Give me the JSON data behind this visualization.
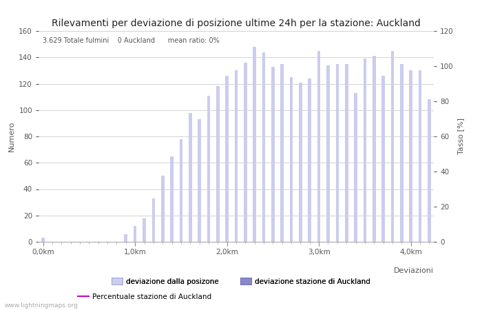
{
  "title": "Rilevamenti per deviazione di posizione ultime 24h per la stazione: Auckland",
  "subtitle": "3.629 Totale fulmini    0 Auckland      mean ratio: 0%",
  "xlabel": "Deviazioni",
  "ylabel_left": "Numero",
  "ylabel_right": "Tasso [%]",
  "watermark": "www.lightningmaps.org",
  "bar_values": [
    3,
    0,
    0,
    0,
    0,
    0,
    0,
    0,
    0,
    6,
    12,
    18,
    33,
    50,
    65,
    78,
    98,
    93,
    111,
    118,
    126,
    130,
    136,
    148,
    144,
    133,
    135,
    125,
    121,
    124,
    145,
    134,
    135,
    135,
    113,
    139,
    141,
    126,
    145,
    135,
    130,
    130,
    108
  ],
  "bar_color_light": "#ccccee",
  "bar_color_dark": "#8888cc",
  "line_color": "#cc00cc",
  "x_tick_labels": [
    "0,0km",
    "1,0km",
    "2,0km",
    "3,0km",
    "4,0km"
  ],
  "x_tick_positions": [
    0,
    10,
    20,
    30,
    40
  ],
  "ylim_left": [
    0,
    160
  ],
  "ylim_right": [
    0,
    120
  ],
  "yticks_left": [
    0,
    20,
    40,
    60,
    80,
    100,
    120,
    140,
    160
  ],
  "yticks_right": [
    0,
    20,
    40,
    60,
    80,
    100,
    120
  ],
  "background_color": "#ffffff",
  "plot_bg_color": "#ffffff",
  "legend_label_1": "deviazione dalla posizone",
  "legend_label_2": "deviazione stazione di Auckland",
  "legend_label_3": "Percentuale stazione di Auckland",
  "title_fontsize": 10,
  "axis_fontsize": 8,
  "tick_fontsize": 7.5
}
